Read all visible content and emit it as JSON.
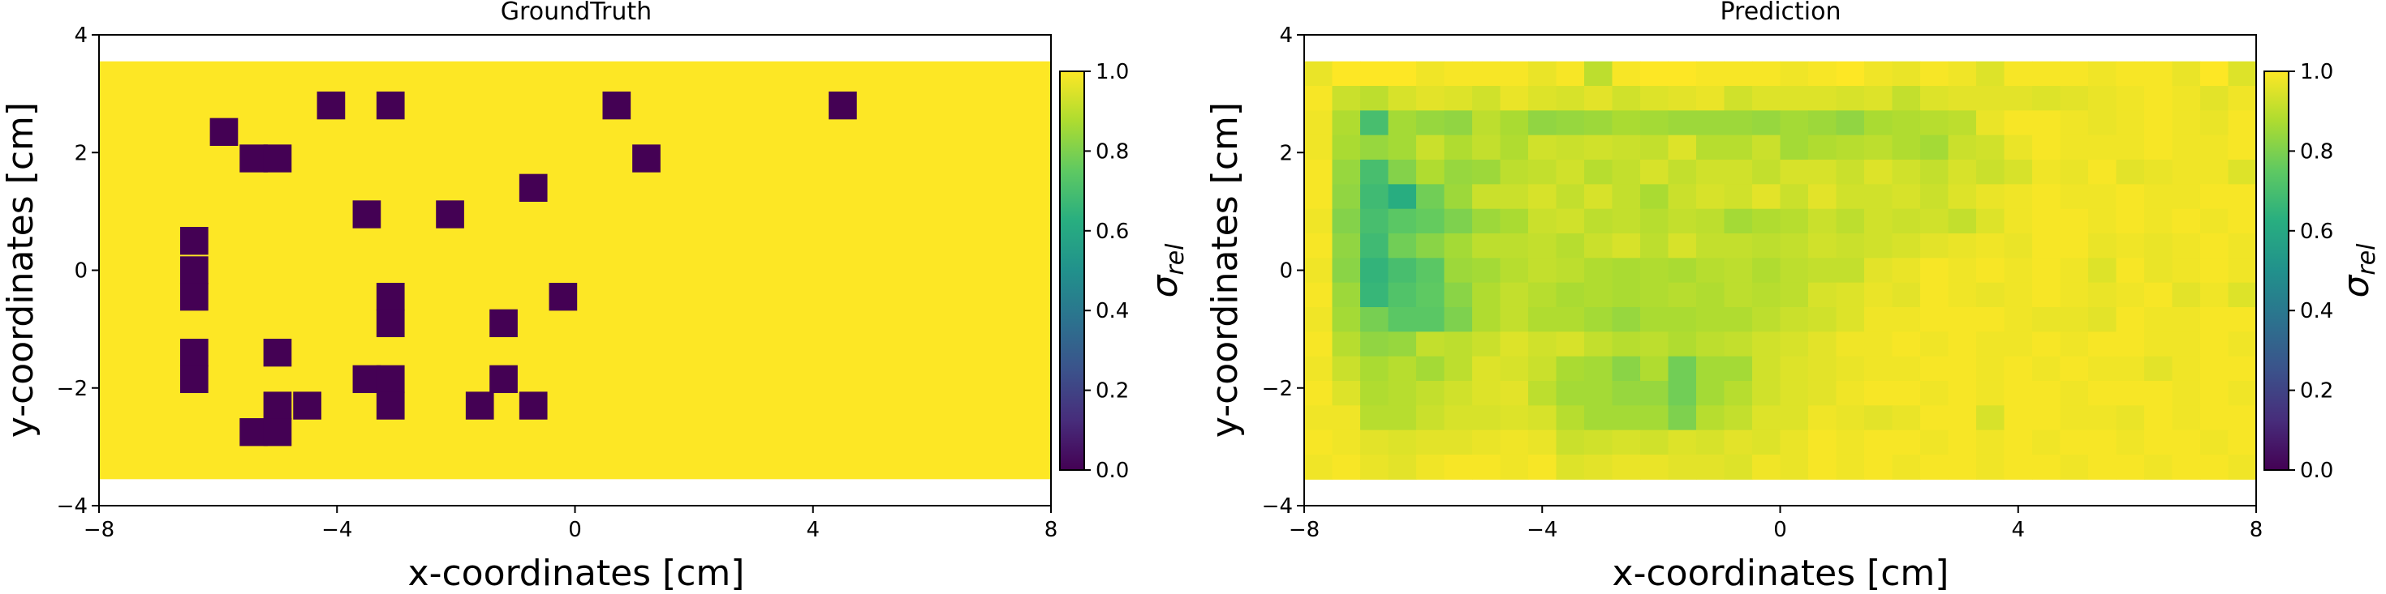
{
  "chart_data": [
    {
      "type": "heatmap",
      "title": "GroundTruth",
      "xlabel": "x-coordinates [cm]",
      "ylabel": "y-coordinates [cm]",
      "xlim": [
        -8,
        8
      ],
      "ylim": [
        -4,
        4
      ],
      "xticks": [
        -8,
        -4,
        0,
        4,
        8
      ],
      "yticks": [
        -4,
        -2,
        0,
        2,
        4
      ],
      "xtick_labels": [
        "−8",
        "−4",
        "0",
        "4",
        "8"
      ],
      "ytick_labels": [
        "−4",
        "−2",
        "0",
        "2",
        "4"
      ],
      "extent": [
        -8,
        8,
        -3.55,
        3.55
      ],
      "cell_size": 0.473,
      "fill_value": 1.0,
      "colormap": "viridis",
      "colorbar": {
        "label": "σ",
        "subscript": "rel",
        "range": [
          0,
          1
        ],
        "ticks": [
          0,
          0.2,
          0.4,
          0.6,
          0.8,
          1.0
        ],
        "tick_labels": [
          "0.0",
          "0.2",
          "0.4",
          "0.6",
          "0.8",
          "1.0"
        ]
      },
      "low_cells": [
        {
          "x": -4.1,
          "y": 2.8,
          "v": 0
        },
        {
          "x": -3.1,
          "y": 2.8,
          "v": 0
        },
        {
          "x": 0.7,
          "y": 2.8,
          "v": 0
        },
        {
          "x": 4.5,
          "y": 2.8,
          "v": 0
        },
        {
          "x": -5.9,
          "y": 2.35,
          "v": 0
        },
        {
          "x": -5.4,
          "y": 1.9,
          "v": 0
        },
        {
          "x": -5.0,
          "y": 1.9,
          "v": 0
        },
        {
          "x": 1.2,
          "y": 1.9,
          "v": 0
        },
        {
          "x": -0.7,
          "y": 1.4,
          "v": 0
        },
        {
          "x": -3.5,
          "y": 0.95,
          "v": 0
        },
        {
          "x": -2.1,
          "y": 0.95,
          "v": 0
        },
        {
          "x": -6.4,
          "y": 0.5,
          "v": 0
        },
        {
          "x": -6.4,
          "y": 0.0,
          "v": 0
        },
        {
          "x": -6.4,
          "y": -0.45,
          "v": 0
        },
        {
          "x": -0.2,
          "y": -0.45,
          "v": 0
        },
        {
          "x": -3.1,
          "y": -0.45,
          "v": 0
        },
        {
          "x": -3.1,
          "y": -0.9,
          "v": 0
        },
        {
          "x": -1.2,
          "y": -0.9,
          "v": 0
        },
        {
          "x": -6.4,
          "y": -1.4,
          "v": 0
        },
        {
          "x": -6.4,
          "y": -1.85,
          "v": 0
        },
        {
          "x": -5.0,
          "y": -1.4,
          "v": 0
        },
        {
          "x": -3.5,
          "y": -1.85,
          "v": 0
        },
        {
          "x": -3.1,
          "y": -1.85,
          "v": 0
        },
        {
          "x": -1.2,
          "y": -1.85,
          "v": 0
        },
        {
          "x": -5.0,
          "y": -2.3,
          "v": 0
        },
        {
          "x": -4.5,
          "y": -2.3,
          "v": 0
        },
        {
          "x": -3.1,
          "y": -2.3,
          "v": 0
        },
        {
          "x": -1.6,
          "y": -2.3,
          "v": 0
        },
        {
          "x": -0.7,
          "y": -2.3,
          "v": 0
        },
        {
          "x": -5.4,
          "y": -2.75,
          "v": 0
        },
        {
          "x": -5.0,
          "y": -2.75,
          "v": 0
        }
      ]
    },
    {
      "type": "heatmap",
      "title": "Prediction",
      "xlabel": "x-coordinates [cm]",
      "ylabel": "y-coordinates [cm]",
      "xlim": [
        -8,
        8
      ],
      "ylim": [
        -4,
        4
      ],
      "xticks": [
        -8,
        -4,
        0,
        4,
        8
      ],
      "yticks": [
        -4,
        -2,
        0,
        2,
        4
      ],
      "xtick_labels": [
        "−8",
        "−4",
        "0",
        "4",
        "8"
      ],
      "ytick_labels": [
        "−4",
        "−2",
        "0",
        "2",
        "4"
      ],
      "extent": [
        -8,
        8,
        -3.55,
        3.55
      ],
      "colormap": "viridis",
      "colorbar": {
        "label": "σ",
        "subscript": "rel",
        "range": [
          0,
          1
        ],
        "ticks": [
          0,
          0.2,
          0.4,
          0.6,
          0.8,
          1.0
        ],
        "tick_labels": [
          "0.0",
          "0.2",
          "0.4",
          "0.6",
          "0.8",
          "1.0"
        ]
      },
      "grid_values": [
        [
          0.97,
          1.0,
          1.0,
          1.0,
          0.98,
          0.99,
          0.99,
          0.99,
          0.97,
          0.99,
          0.9,
          0.99,
          1.0,
          1.0,
          0.99,
          0.99,
          0.99,
          0.98,
          0.99,
          1.0,
          0.98,
          0.97,
          0.99,
          0.98,
          0.95,
          0.99,
          0.99,
          0.99,
          0.98,
          0.99,
          0.99,
          0.97,
          1.0,
          0.95
        ],
        [
          0.99,
          0.92,
          0.9,
          0.94,
          0.96,
          0.95,
          0.93,
          0.97,
          0.95,
          0.94,
          0.96,
          0.93,
          0.95,
          0.96,
          0.97,
          0.93,
          0.95,
          0.95,
          0.95,
          0.94,
          0.95,
          0.91,
          0.95,
          0.96,
          0.96,
          0.96,
          0.95,
          0.96,
          0.97,
          0.98,
          0.99,
          0.98,
          0.96,
          0.98
        ],
        [
          0.98,
          0.88,
          0.7,
          0.86,
          0.84,
          0.83,
          0.9,
          0.87,
          0.83,
          0.84,
          0.85,
          0.87,
          0.86,
          0.85,
          0.85,
          0.85,
          0.84,
          0.86,
          0.85,
          0.83,
          0.87,
          0.88,
          0.89,
          0.9,
          0.97,
          0.99,
          0.99,
          0.98,
          0.97,
          0.98,
          0.99,
          0.98,
          0.97,
          0.99
        ],
        [
          0.98,
          0.87,
          0.84,
          0.86,
          0.92,
          0.88,
          0.91,
          0.88,
          0.93,
          0.92,
          0.93,
          0.92,
          0.91,
          0.95,
          0.89,
          0.89,
          0.92,
          0.86,
          0.88,
          0.89,
          0.9,
          0.88,
          0.86,
          0.92,
          0.93,
          0.97,
          0.99,
          0.98,
          0.98,
          0.98,
          0.99,
          0.98,
          0.98,
          0.99
        ],
        [
          0.99,
          0.84,
          0.7,
          0.81,
          0.88,
          0.84,
          0.85,
          0.9,
          0.91,
          0.93,
          0.89,
          0.91,
          0.94,
          0.91,
          0.93,
          0.93,
          0.91,
          0.94,
          0.94,
          0.92,
          0.95,
          0.93,
          0.91,
          0.94,
          0.92,
          0.94,
          0.98,
          0.97,
          0.99,
          0.96,
          0.97,
          0.98,
          0.98,
          0.95
        ],
        [
          0.99,
          0.83,
          0.68,
          0.62,
          0.78,
          0.85,
          0.92,
          0.92,
          0.94,
          0.91,
          0.94,
          0.91,
          0.87,
          0.92,
          0.94,
          0.93,
          0.96,
          0.92,
          0.96,
          0.93,
          0.93,
          0.94,
          0.92,
          0.95,
          0.97,
          0.98,
          0.99,
          0.98,
          0.98,
          0.99,
          0.98,
          0.98,
          0.99,
          0.99
        ],
        [
          0.98,
          0.81,
          0.7,
          0.74,
          0.76,
          0.8,
          0.85,
          0.87,
          0.92,
          0.93,
          0.9,
          0.91,
          0.89,
          0.91,
          0.9,
          0.86,
          0.88,
          0.89,
          0.92,
          0.9,
          0.93,
          0.92,
          0.93,
          0.91,
          0.95,
          0.98,
          0.99,
          0.99,
          0.98,
          0.99,
          0.98,
          0.99,
          0.98,
          0.99
        ],
        [
          0.99,
          0.83,
          0.68,
          0.78,
          0.82,
          0.86,
          0.9,
          0.9,
          0.91,
          0.89,
          0.92,
          0.94,
          0.9,
          0.94,
          0.91,
          0.91,
          0.9,
          0.91,
          0.93,
          0.92,
          0.93,
          0.94,
          0.96,
          0.97,
          0.98,
          0.97,
          0.99,
          0.99,
          0.97,
          0.98,
          0.97,
          0.98,
          0.99,
          0.98
        ],
        [
          0.98,
          0.82,
          0.65,
          0.7,
          0.74,
          0.85,
          0.86,
          0.89,
          0.91,
          0.9,
          0.88,
          0.87,
          0.88,
          0.87,
          0.89,
          0.9,
          0.88,
          0.9,
          0.91,
          0.91,
          0.96,
          0.97,
          0.99,
          0.98,
          0.99,
          0.98,
          0.99,
          0.98,
          0.95,
          0.99,
          0.97,
          0.98,
          0.99,
          0.98
        ],
        [
          0.99,
          0.85,
          0.66,
          0.72,
          0.75,
          0.82,
          0.88,
          0.91,
          0.89,
          0.87,
          0.88,
          0.87,
          0.88,
          0.89,
          0.88,
          0.9,
          0.89,
          0.9,
          0.94,
          0.95,
          0.97,
          0.96,
          0.99,
          0.98,
          0.97,
          0.98,
          0.99,
          0.98,
          0.97,
          0.98,
          0.99,
          0.96,
          0.98,
          0.95
        ],
        [
          0.98,
          0.86,
          0.79,
          0.74,
          0.74,
          0.8,
          0.88,
          0.91,
          0.88,
          0.88,
          0.86,
          0.84,
          0.87,
          0.87,
          0.88,
          0.88,
          0.9,
          0.92,
          0.93,
          0.95,
          0.98,
          0.98,
          0.99,
          0.99,
          0.99,
          0.98,
          0.97,
          0.97,
          0.96,
          0.99,
          0.98,
          0.98,
          0.99,
          0.99
        ],
        [
          0.99,
          0.89,
          0.83,
          0.84,
          0.91,
          0.9,
          0.92,
          0.95,
          0.93,
          0.94,
          0.91,
          0.89,
          0.9,
          0.88,
          0.9,
          0.91,
          0.93,
          0.94,
          0.96,
          0.98,
          0.98,
          0.99,
          0.98,
          0.99,
          0.98,
          0.98,
          0.99,
          0.98,
          0.99,
          0.99,
          0.98,
          0.98,
          0.99,
          0.98
        ],
        [
          0.98,
          0.92,
          0.87,
          0.89,
          0.86,
          0.9,
          0.95,
          0.94,
          0.92,
          0.87,
          0.86,
          0.82,
          0.88,
          0.78,
          0.86,
          0.86,
          0.93,
          0.95,
          0.96,
          0.97,
          0.98,
          0.98,
          0.99,
          0.99,
          0.98,
          0.99,
          0.98,
          0.99,
          0.98,
          0.98,
          0.96,
          0.98,
          0.99,
          0.99
        ],
        [
          0.99,
          0.95,
          0.88,
          0.89,
          0.91,
          0.93,
          0.95,
          0.96,
          0.9,
          0.86,
          0.86,
          0.84,
          0.84,
          0.78,
          0.86,
          0.89,
          0.93,
          0.95,
          0.96,
          0.98,
          0.99,
          0.99,
          0.98,
          0.99,
          0.98,
          0.99,
          0.99,
          0.98,
          0.99,
          0.99,
          0.99,
          0.98,
          0.99,
          0.98
        ],
        [
          0.98,
          0.98,
          0.89,
          0.89,
          0.92,
          0.94,
          0.94,
          0.95,
          0.94,
          0.89,
          0.86,
          0.86,
          0.86,
          0.8,
          0.89,
          0.91,
          0.95,
          0.95,
          0.98,
          0.97,
          0.96,
          0.97,
          0.99,
          0.99,
          0.94,
          0.99,
          0.99,
          0.98,
          0.98,
          0.97,
          0.99,
          0.98,
          0.99,
          0.99
        ],
        [
          0.99,
          0.98,
          0.96,
          0.95,
          0.96,
          0.96,
          0.97,
          0.98,
          0.97,
          0.92,
          0.93,
          0.94,
          0.93,
          0.95,
          0.94,
          0.96,
          0.95,
          0.97,
          0.99,
          0.98,
          0.99,
          0.99,
          0.98,
          0.99,
          0.98,
          0.99,
          0.98,
          0.99,
          0.99,
          0.98,
          0.99,
          0.99,
          0.98,
          0.99
        ],
        [
          0.98,
          0.99,
          0.97,
          0.96,
          0.98,
          0.99,
          0.99,
          0.98,
          0.99,
          0.95,
          0.96,
          0.97,
          0.97,
          0.96,
          0.96,
          0.95,
          0.98,
          0.97,
          0.99,
          0.98,
          0.99,
          0.98,
          0.99,
          0.99,
          0.98,
          0.99,
          0.99,
          0.98,
          0.99,
          0.99,
          0.98,
          0.99,
          0.99,
          0.98
        ]
      ]
    }
  ]
}
